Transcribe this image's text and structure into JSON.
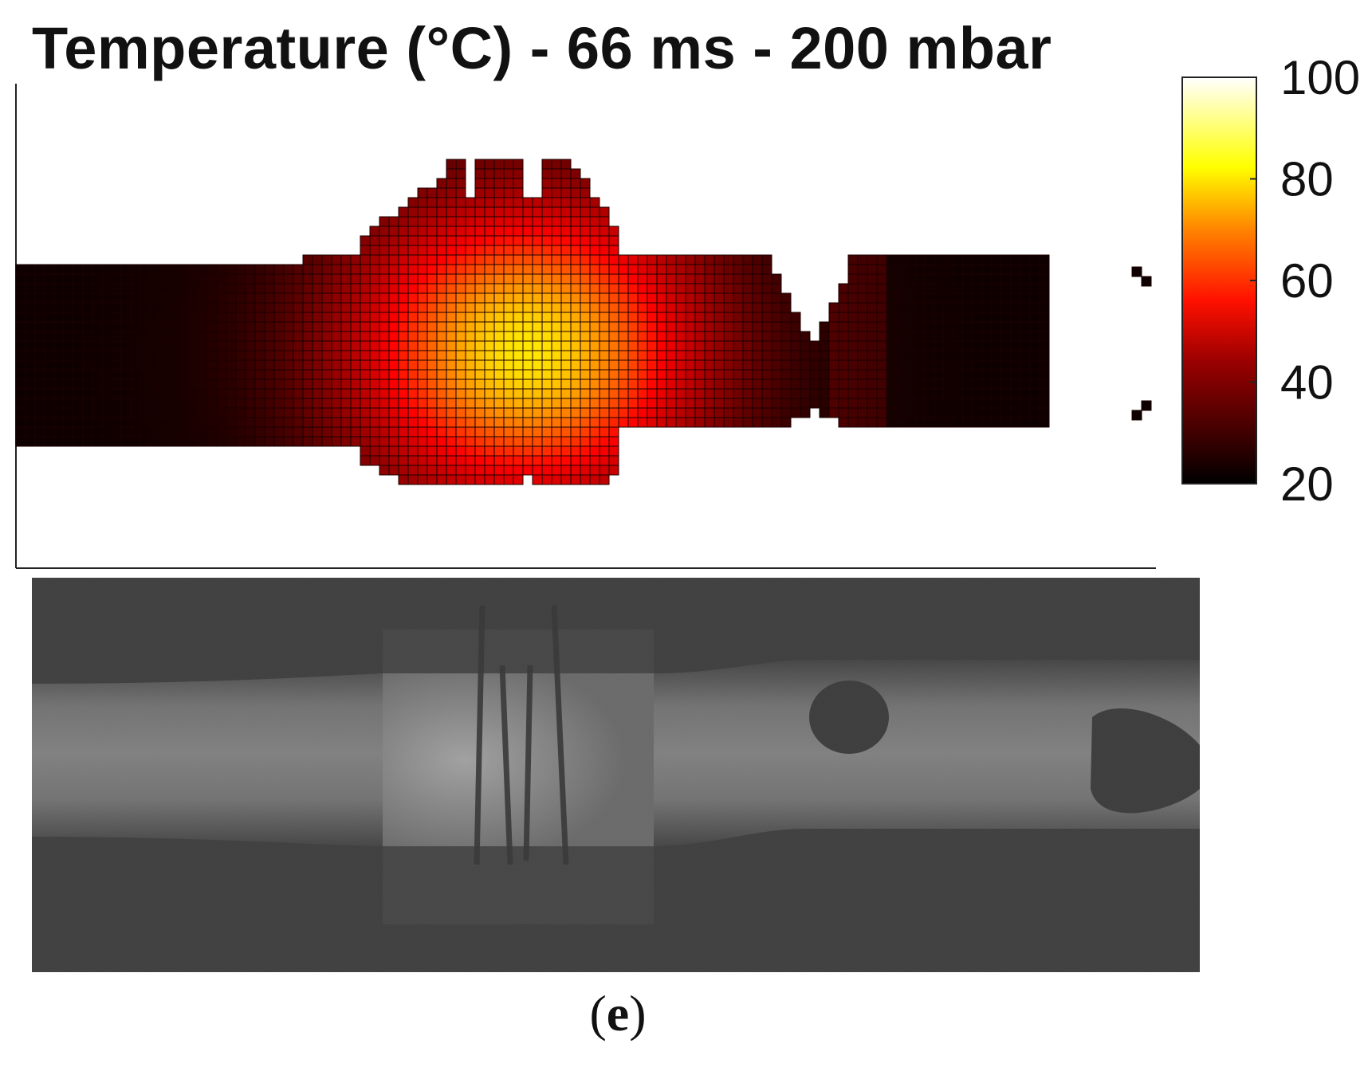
{
  "figure": {
    "title": "Temperature (°C) - 66 ms - 200 mbar",
    "caption_open": "(",
    "caption_letter": "e",
    "caption_close": ")"
  },
  "chart_data": {
    "type": "heatmap",
    "title": "Temperature (°C) - 66 ms - 200 mbar",
    "xlabel": "",
    "ylabel": "",
    "colormap": "hot",
    "colorbar": {
      "ticks": [
        20,
        40,
        60,
        80,
        100
      ],
      "range": [
        20,
        100
      ]
    },
    "hotspot_peak_estimate": 80,
    "ambient_estimate": 22,
    "colors": {
      "cold": "#000000",
      "mid": "#ff0000",
      "hot": "#ffff00",
      "max": "#ffffff"
    }
  },
  "image_panel": {
    "kind": "grayscale photograph of tube with inserted sample"
  }
}
